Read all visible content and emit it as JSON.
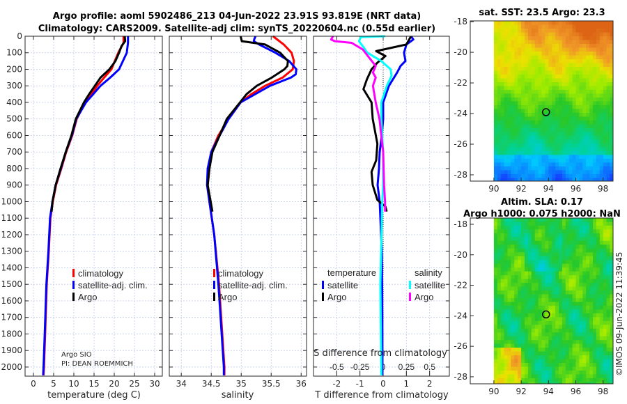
{
  "header": {
    "title_line1": "Argo profile: aoml 5902486_213 04-Jun-2022 23.91S 93.819E (NRT data)",
    "title_line2": "Climatology: CARS2009. Satellite-adj clim: synTS_20220604.nc (0.55d earlier)"
  },
  "colors": {
    "climatology": "#ff0000",
    "satellite": "#0000ff",
    "argo": "#000000",
    "salinity_satellite": "#00ffff",
    "salinity_argo": "#ff00ff"
  },
  "footer": {
    "credit_line1": "Argo SIO",
    "credit_line2": "PI: DEAN ROEMMICH",
    "timestamp": "©IMOS 09-Jun-2022 11:39:45"
  },
  "legend_profiles": {
    "climatology": "climatology",
    "satellite": "satellite-adj. clim.",
    "argo": "Argo"
  },
  "legend_diff": {
    "temp_title": "temperature",
    "sal_title": "salinity",
    "satellite": "satellite",
    "argo": "Argo"
  },
  "chart_data": [
    {
      "type": "line",
      "id": "temperature",
      "xlabel": "temperature (deg C)",
      "ylabel": "",
      "xlim": [
        -2.07,
        31.9
      ],
      "ylim": [
        2055,
        0
      ],
      "xticks": [
        0,
        5,
        10,
        15,
        20,
        25,
        30
      ],
      "yticks": [
        0,
        100,
        200,
        300,
        400,
        500,
        600,
        700,
        800,
        900,
        1000,
        1100,
        1200,
        1300,
        1400,
        1500,
        1600,
        1700,
        1800,
        1900,
        2000
      ],
      "grid": true,
      "series": [
        {
          "name": "climatology",
          "color": "#ff0000",
          "depth": [
            0,
            40,
            100,
            200,
            250,
            300,
            350,
            400,
            500,
            600,
            700,
            800,
            900,
            1000,
            1100,
            1300,
            1500,
            1800,
            2000,
            2050
          ],
          "values": [
            22.3,
            22.3,
            21.0,
            19.3,
            17.5,
            15.8,
            14.3,
            12.8,
            10.7,
            9.6,
            8.1,
            6.9,
            5.6,
            4.8,
            4.2,
            3.8,
            3.3,
            2.9,
            2.6,
            2.5
          ]
        },
        {
          "name": "satellite-adj. clim.",
          "color": "#0000ff",
          "depth": [
            0,
            40,
            100,
            200,
            250,
            300,
            350,
            400,
            500,
            600,
            700,
            800,
            900,
            1000,
            1100,
            1300,
            1500,
            1800,
            2000,
            2050
          ],
          "values": [
            23.4,
            23.4,
            23.1,
            21.2,
            19.0,
            16.6,
            14.8,
            13.0,
            10.6,
            9.5,
            8.0,
            6.8,
            5.5,
            4.7,
            4.1,
            3.7,
            3.2,
            2.8,
            2.5,
            2.4
          ]
        },
        {
          "name": "Argo",
          "color": "#000000",
          "depth": [
            0,
            30,
            60,
            100,
            150,
            200,
            250,
            300,
            350,
            400,
            500,
            600,
            700,
            800,
            900,
            1000,
            1060
          ],
          "values": [
            22.6,
            22.7,
            21.8,
            21.2,
            20.3,
            18.8,
            16.6,
            15.2,
            13.8,
            12.5,
            10.5,
            9.4,
            8.0,
            6.7,
            5.5,
            4.7,
            4.5
          ]
        }
      ]
    },
    {
      "type": "line",
      "id": "salinity",
      "xlabel": "salinity",
      "xlim": [
        33.8,
        36.09
      ],
      "ylim": [
        2055,
        0
      ],
      "xticks": [
        34,
        34.5,
        35,
        35.5,
        36
      ],
      "grid": true,
      "series": [
        {
          "name": "climatology",
          "color": "#ff0000",
          "depth": [
            0,
            50,
            100,
            150,
            200,
            250,
            300,
            350,
            400,
            500,
            600,
            700,
            800,
            900,
            1000,
            1200,
            1500,
            2000,
            2050
          ],
          "values": [
            35.53,
            35.71,
            35.84,
            35.88,
            35.86,
            35.69,
            35.4,
            35.17,
            34.99,
            34.79,
            34.62,
            34.5,
            34.47,
            34.44,
            34.47,
            34.55,
            34.63,
            34.72,
            34.72
          ]
        },
        {
          "name": "satellite-adj. clim.",
          "color": "#0000ff",
          "depth": [
            0,
            15,
            30,
            50,
            100,
            150,
            200,
            230,
            250,
            300,
            400,
            500,
            600,
            700,
            800,
            900,
            1000,
            1200,
            1500,
            2000,
            2050
          ],
          "values": [
            35.24,
            35.22,
            35.21,
            35.3,
            35.57,
            35.8,
            35.92,
            35.91,
            35.83,
            35.48,
            34.99,
            34.79,
            34.64,
            34.5,
            34.44,
            34.43,
            34.47,
            34.55,
            34.62,
            34.71,
            34.71
          ]
        },
        {
          "name": "Argo",
          "color": "#000000",
          "depth": [
            0,
            30,
            50,
            100,
            150,
            180,
            200,
            250,
            300,
            350,
            400,
            500,
            600,
            700,
            800,
            900,
            1000,
            1060
          ],
          "values": [
            34.99,
            35.01,
            35.4,
            35.65,
            35.78,
            35.77,
            35.72,
            35.51,
            35.26,
            35.09,
            34.98,
            34.76,
            34.64,
            34.52,
            34.47,
            34.44,
            34.49,
            34.52
          ]
        }
      ]
    },
    {
      "type": "line",
      "id": "difference",
      "xlabel": "T difference from climatology",
      "x2label": "S difference from climatology",
      "xlim": [
        -3.0,
        2.85
      ],
      "ylim": [
        2055,
        0
      ],
      "xticks": [
        -2,
        -1,
        0,
        1,
        2
      ],
      "x2ticks": [
        -0.5,
        -0.25,
        0,
        0.25,
        0.5
      ],
      "x2_scale_factor": 4,
      "grid": true,
      "series": [
        {
          "name": "temperature satellite",
          "color": "#0000ff",
          "axis": "T",
          "depth": [
            0,
            20,
            50,
            100,
            150,
            180,
            220,
            300,
            400,
            500,
            600,
            700,
            800,
            900,
            1000,
            1100,
            1300,
            1600,
            2000,
            2050
          ],
          "values": [
            1.2,
            1.3,
            1.0,
            0.9,
            0.96,
            0.75,
            0.6,
            0.25,
            0.0,
            0.0,
            -0.06,
            -0.15,
            -0.18,
            -0.24,
            -0.15,
            -0.12,
            -0.06,
            -0.04,
            -0.03,
            -0.03
          ]
        },
        {
          "name": "temperature Argo",
          "color": "#000000",
          "axis": "T",
          "depth": [
            0,
            50,
            90,
            120,
            160,
            200,
            260,
            320,
            400,
            500,
            650,
            750,
            820,
            900,
            990,
            1030,
            1060
          ],
          "values": [
            1.2,
            1.0,
            -0.3,
            0.1,
            -0.25,
            -0.5,
            -0.7,
            -0.85,
            -0.5,
            -0.45,
            -0.25,
            -0.3,
            -0.5,
            -0.45,
            -0.25,
            0.1,
            0.15
          ]
        },
        {
          "name": "salinity satellite",
          "color": "#00ffff",
          "axis": "S",
          "depth": [
            0,
            5,
            30,
            60,
            100,
            150,
            200,
            240,
            300,
            400,
            500,
            700,
            900,
            1000,
            1500,
            2000,
            2050
          ],
          "values": [
            0.02,
            -0.24,
            -0.26,
            -0.22,
            -0.17,
            -0.02,
            0.08,
            0.09,
            0.04,
            -0.02,
            -0.02,
            0,
            0,
            -0.01,
            -0.03,
            -0.02,
            -0.02
          ]
        },
        {
          "name": "salinity Argo",
          "color": "#ff00ff",
          "axis": "S",
          "depth": [
            0,
            20,
            30,
            40,
            80,
            130,
            180,
            220,
            250,
            300,
            400,
            500,
            600,
            700,
            900,
            1000,
            1060
          ],
          "values": [
            -0.54,
            -0.56,
            -0.52,
            -0.34,
            -0.22,
            -0.15,
            -0.08,
            -0.11,
            -0.08,
            -0.11,
            -0.08,
            -0.04,
            -0.02,
            0,
            0.01,
            0.02,
            0.02
          ]
        }
      ]
    },
    {
      "type": "heatmap",
      "id": "sst_map",
      "title": "sat. SST: 23.5 Argo: 23.3",
      "xlim": [
        88.27,
        98.73
      ],
      "ylim": [
        -28.41,
        -17.95
      ],
      "xticks": [
        90,
        92,
        94,
        96,
        98
      ],
      "yticks": [
        -18,
        -20,
        -22,
        -24,
        -26,
        -28
      ],
      "marker": {
        "lon": 93.82,
        "lat": -23.91
      }
    },
    {
      "type": "heatmap",
      "id": "sla_map",
      "title_line1": "Altim. SLA: 0.17",
      "title_line2": "Argo h1000: 0.075 h2000: NaN",
      "xlim": [
        88.27,
        98.73
      ],
      "ylim": [
        -28.46,
        -17.59
      ],
      "xticks": [
        90,
        92,
        94,
        96,
        98
      ],
      "yticks": [
        -18,
        -20,
        -22,
        -24,
        -26,
        -28
      ],
      "marker": {
        "lon": 93.82,
        "lat": -23.91
      }
    }
  ]
}
